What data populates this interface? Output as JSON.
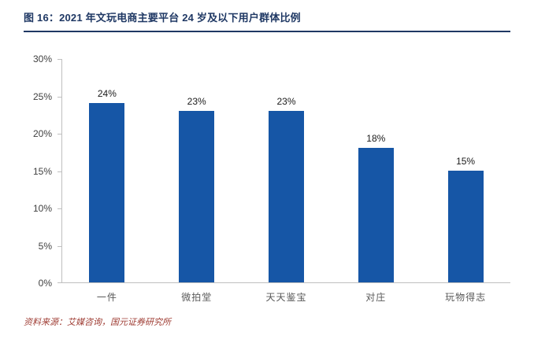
{
  "header": {
    "title": "图 16：2021 年文玩电商主要平台 24 岁及以下用户群体比例"
  },
  "chart_data": {
    "type": "bar",
    "title": "2021 年文玩电商主要平台 24 岁及以下用户群体比例",
    "categories": [
      "一件",
      "微拍堂",
      "天天鉴宝",
      "对庄",
      "玩物得志"
    ],
    "values": [
      24,
      23,
      23,
      18,
      15
    ],
    "value_labels": [
      "24%",
      "23%",
      "23%",
      "18%",
      "15%"
    ],
    "xlabel": "",
    "ylabel": "",
    "ylim": [
      0,
      30
    ],
    "ytick_step": 5,
    "ytick_labels": [
      "0%",
      "5%",
      "10%",
      "15%",
      "20%",
      "25%",
      "30%"
    ],
    "grid": false,
    "legend": "none",
    "bar_color": "#1656A6"
  },
  "source": {
    "text": "资料来源：艾媒咨询，国元证券研究所"
  },
  "colors": {
    "title_navy": "#1F3864",
    "bar_blue": "#1656A6",
    "axis_gray": "#BFBFBF",
    "tick_label_gray": "#404040",
    "category_label_gray": "#595959",
    "source_red": "#9E3B32"
  }
}
